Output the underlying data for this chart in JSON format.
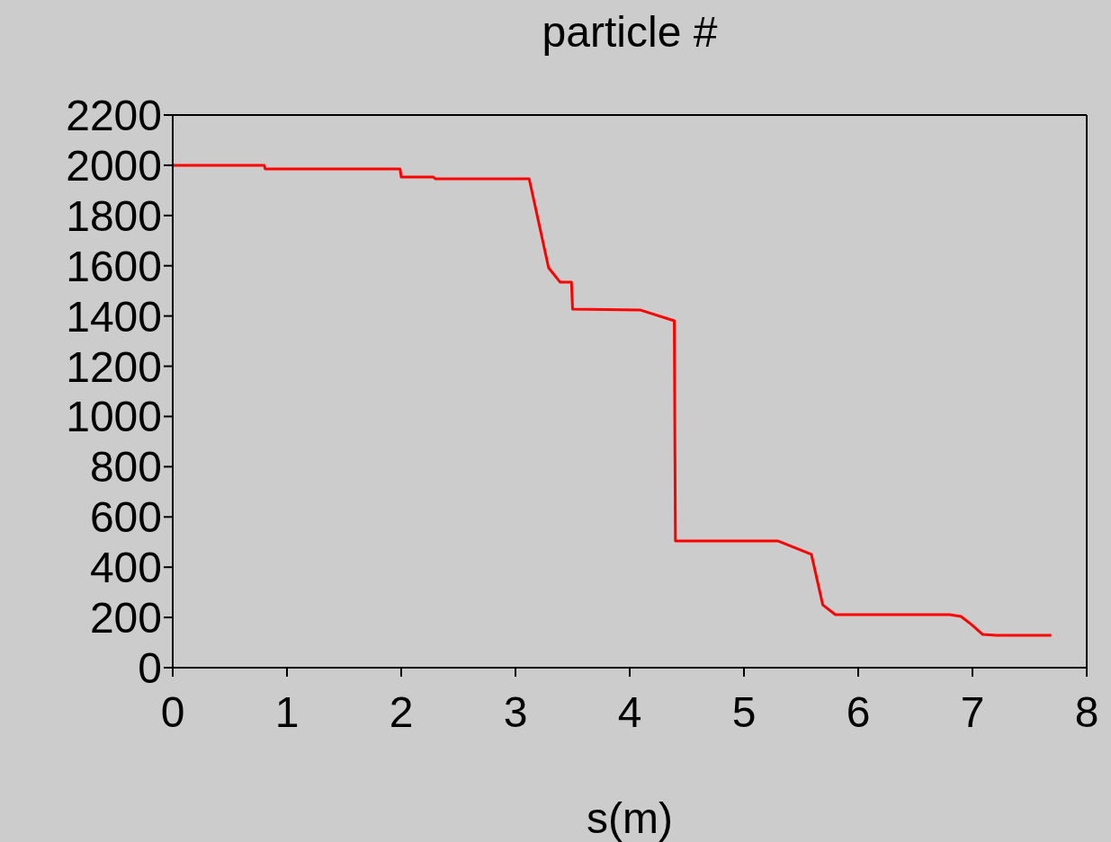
{
  "chart_data": {
    "type": "line",
    "title": "particle #",
    "xlabel": "s(m)",
    "x": [
      0,
      0.8,
      0.81,
      1.99,
      2.0,
      2.28,
      2.3,
      3.12,
      3.29,
      3.39,
      3.49,
      3.5,
      4.09,
      4.39,
      4.4,
      5.3,
      5.59,
      5.69,
      5.8,
      6.8,
      6.9,
      6.99,
      7.09,
      7.21,
      7.69
    ],
    "series": [
      {
        "color": "#ff0000",
        "values": [
          2000,
          2000,
          1985,
          1985,
          1953,
          1953,
          1946,
          1946,
          1592,
          1535,
          1535,
          1427,
          1424,
          1381,
          504,
          504,
          451,
          250,
          211,
          211,
          204,
          172,
          132,
          129,
          129
        ]
      }
    ],
    "xlim": [
      0,
      8
    ],
    "xticks": [
      0,
      1,
      2,
      3,
      4,
      5,
      6,
      7,
      8
    ],
    "ylim": [
      0,
      2200
    ],
    "yticks": [
      0,
      200,
      400,
      600,
      800,
      1000,
      1200,
      1400,
      1600,
      1800,
      2000,
      2200
    ],
    "grid": false,
    "legend": false,
    "marker": "none",
    "line_style": "solid"
  }
}
